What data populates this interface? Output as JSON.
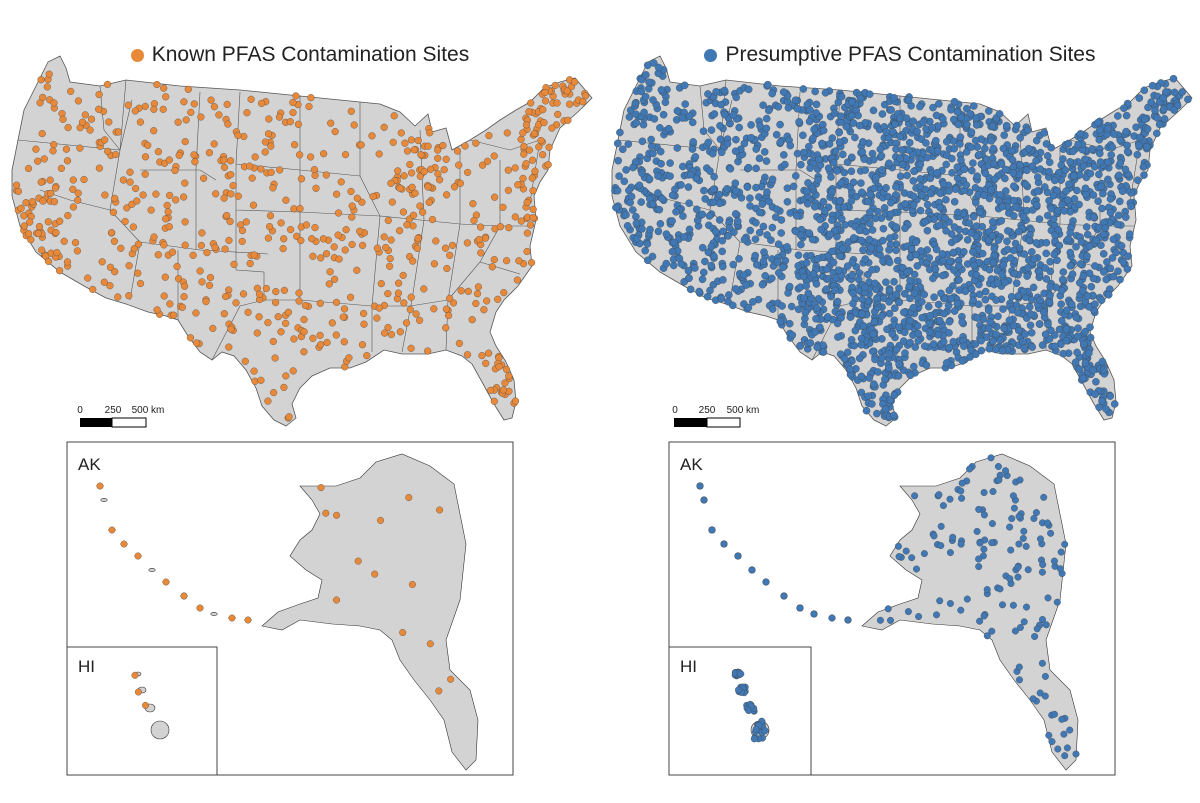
{
  "colors": {
    "land": "#d3d3d3",
    "border": "#555555",
    "known": "#e8893a",
    "presumptive": "#3f78b4"
  },
  "panels": [
    {
      "id": "known",
      "legend": "Known PFAS Contamination Sites",
      "color_key": "known",
      "density": "sparse"
    },
    {
      "id": "presumptive",
      "legend": "Presumptive PFAS Contamination Sites",
      "color_key": "presumptive",
      "density": "dense"
    }
  ],
  "scale_bar": {
    "ticks": [
      "0",
      "250",
      "500 km"
    ]
  },
  "insets": {
    "alaska_label": "AK",
    "hawaii_label": "HI"
  }
}
